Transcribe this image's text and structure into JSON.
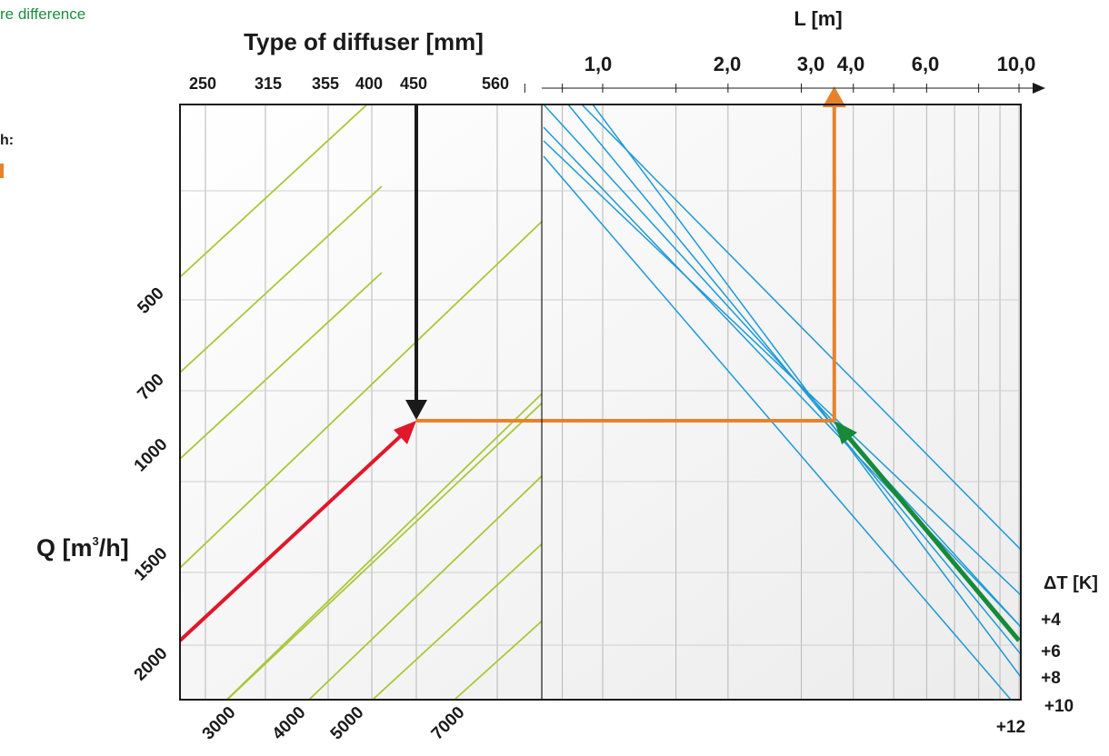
{
  "left_panel": {
    "note": "re difference",
    "label": "h:",
    "marker_color": "#e8822a"
  },
  "chart_data": {
    "type": "nomogram",
    "top_left_title": "Type of diffuser [mm]",
    "diffuser_types": [
      "250",
      "315",
      "355",
      "400",
      "450",
      "560"
    ],
    "top_right_title": "L [m]",
    "L_ticks": [
      "1,0",
      "2,0",
      "3,0",
      "4,0",
      "6,0",
      "10,0"
    ],
    "q_label": "Q [m",
    "q_sup": "3",
    "q_unit_end": "/h]",
    "q_ticks_left": [
      "500",
      "700",
      "1000",
      "1500",
      "2000"
    ],
    "q_ticks_bottom": [
      "3000",
      "4000",
      "5000",
      "7000"
    ],
    "dT_title": "ΔT [K]",
    "dT_values": [
      "+4",
      "+6",
      "+8",
      "+10",
      "+12"
    ],
    "example": {
      "diffuser": "450",
      "Q_m3h": 850,
      "L_m": 3.6
    },
    "colors": {
      "grid": "#b7b7b7",
      "frame": "#1a1a1a",
      "diffuser_lines": "#a8c83a",
      "dT_lines": "#1e9ad6",
      "dT_text": "#1e9ad6",
      "path_orange": "#e8822a",
      "arrow_red": "#e0182a",
      "arrow_green": "#178a3a",
      "arrow_black": "#1a1a1a"
    }
  }
}
